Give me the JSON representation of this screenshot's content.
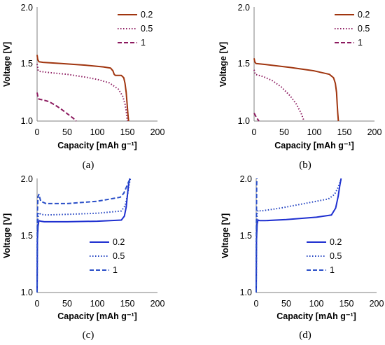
{
  "chart_data": [
    {
      "type": "line",
      "caption": "(a)",
      "xlabel": "Capacity [mAh g⁻¹]",
      "ylabel": "Voltage [V]",
      "xlim": [
        0,
        200
      ],
      "ylim": [
        1.0,
        2.0
      ],
      "xticks": [
        "0",
        "50",
        "100",
        "150",
        "200"
      ],
      "yticks": [
        "1.0",
        "1.5",
        "2.0"
      ],
      "legend_position": "top-right",
      "series": [
        {
          "name": "0.2",
          "color": "#a0350f",
          "dash": "solid",
          "x": [
            0,
            1,
            3,
            10,
            40,
            80,
            110,
            122,
            126,
            128,
            130,
            140,
            144,
            146,
            148,
            150,
            151,
            152
          ],
          "y": [
            1.58,
            1.54,
            1.52,
            1.515,
            1.505,
            1.49,
            1.475,
            1.465,
            1.44,
            1.41,
            1.4,
            1.4,
            1.38,
            1.33,
            1.25,
            1.12,
            1.05,
            1.0
          ]
        },
        {
          "name": "0.5",
          "color": "#8c1a5f",
          "dash": "dot",
          "x": [
            0,
            2,
            5,
            20,
            50,
            80,
            100,
            120,
            135,
            142,
            146,
            148,
            149,
            150
          ],
          "y": [
            1.5,
            1.44,
            1.435,
            1.425,
            1.41,
            1.385,
            1.365,
            1.335,
            1.28,
            1.22,
            1.15,
            1.09,
            1.04,
            1.0
          ]
        },
        {
          "name": "1",
          "color": "#8c1a5f",
          "dash": "dash",
          "x": [
            0,
            2,
            5,
            10,
            20,
            30,
            40,
            50,
            60,
            65
          ],
          "y": [
            1.25,
            1.195,
            1.19,
            1.185,
            1.17,
            1.14,
            1.105,
            1.065,
            1.025,
            1.0
          ]
        }
      ]
    },
    {
      "type": "line",
      "caption": "(b)",
      "xlabel": "Capacity [mAh g⁻¹]",
      "ylabel": "Voltage [V]",
      "xlim": [
        0,
        200
      ],
      "ylim": [
        1.0,
        2.0
      ],
      "xticks": [
        "0",
        "50",
        "100",
        "150",
        "200"
      ],
      "yticks": [
        "1.0",
        "1.5",
        "2.0"
      ],
      "legend_position": "top-right",
      "series": [
        {
          "name": "0.2",
          "color": "#a0350f",
          "dash": "solid",
          "x": [
            0,
            1,
            3,
            20,
            60,
            100,
            125,
            132,
            135,
            137,
            138,
            139,
            140
          ],
          "y": [
            1.55,
            1.52,
            1.505,
            1.495,
            1.47,
            1.44,
            1.41,
            1.38,
            1.33,
            1.25,
            1.15,
            1.07,
            1.0
          ]
        },
        {
          "name": "0.5",
          "color": "#8c1a5f",
          "dash": "dot",
          "x": [
            0,
            2,
            5,
            15,
            30,
            45,
            60,
            70,
            78,
            83
          ],
          "y": [
            1.45,
            1.41,
            1.405,
            1.39,
            1.355,
            1.3,
            1.22,
            1.15,
            1.07,
            1.0
          ]
        },
        {
          "name": "1",
          "color": "#8c1a5f",
          "dash": "dash",
          "x": [
            0,
            2,
            4,
            6,
            8
          ],
          "y": [
            1.07,
            1.05,
            1.03,
            1.015,
            1.0
          ]
        }
      ]
    },
    {
      "type": "line",
      "caption": "(c)",
      "xlabel": "Capacity [mAh g⁻¹]",
      "ylabel": "Voltage [V]",
      "xlim": [
        0,
        200
      ],
      "ylim": [
        1.0,
        2.0
      ],
      "xticks": [
        "0",
        "50",
        "100",
        "150",
        "200"
      ],
      "yticks": [
        "1.0",
        "1.5",
        "2.0"
      ],
      "legend_position": "right",
      "series": [
        {
          "name": "0.2",
          "color": "#1e2fd0",
          "dash": "solid",
          "x": [
            0,
            0.5,
            1.5,
            3,
            6,
            12,
            50,
            100,
            140,
            145,
            148,
            150,
            152,
            154
          ],
          "y": [
            1.0,
            1.45,
            1.58,
            1.63,
            1.625,
            1.62,
            1.62,
            1.625,
            1.635,
            1.67,
            1.75,
            1.85,
            1.95,
            2.0
          ]
        },
        {
          "name": "0.5",
          "color": "#1e3fc0",
          "dash": "dot",
          "x": [
            0,
            0.5,
            1.5,
            3,
            6,
            15,
            50,
            100,
            140,
            146,
            150,
            153,
            155
          ],
          "y": [
            1.0,
            1.55,
            1.66,
            1.7,
            1.685,
            1.68,
            1.685,
            1.695,
            1.715,
            1.76,
            1.85,
            1.95,
            2.0
          ]
        },
        {
          "name": "1",
          "color": "#2a4fc8",
          "dash": "dash",
          "x": [
            0,
            0.5,
            1.5,
            3,
            6,
            15,
            50,
            100,
            138,
            144,
            148,
            152,
            155
          ],
          "y": [
            1.0,
            1.7,
            1.84,
            1.86,
            1.8,
            1.78,
            1.78,
            1.8,
            1.835,
            1.87,
            1.92,
            1.97,
            2.0
          ]
        }
      ]
    },
    {
      "type": "line",
      "caption": "(d)",
      "xlabel": "Capacity [mAh g⁻¹]",
      "ylabel": "Voltage [V]",
      "xlim": [
        0,
        200
      ],
      "ylim": [
        1.0,
        2.0
      ],
      "xticks": [
        "0",
        "50",
        "100",
        "150",
        "200"
      ],
      "yticks": [
        "1.0",
        "1.5",
        "2.0"
      ],
      "legend_position": "right",
      "series": [
        {
          "name": "0.2",
          "color": "#1e2fd0",
          "dash": "solid",
          "x": [
            0,
            0.5,
            1.5,
            3,
            6,
            15,
            50,
            100,
            125,
            132,
            136,
            139,
            141
          ],
          "y": [
            1.0,
            1.45,
            1.6,
            1.635,
            1.63,
            1.63,
            1.64,
            1.66,
            1.68,
            1.74,
            1.84,
            1.94,
            2.0
          ]
        },
        {
          "name": "0.5",
          "color": "#1e3fc0",
          "dash": "dot",
          "x": [
            0,
            0.5,
            1.5,
            3,
            8,
            40,
            80,
            120,
            130,
            136,
            140,
            142
          ],
          "y": [
            1.0,
            1.55,
            1.7,
            1.72,
            1.715,
            1.74,
            1.78,
            1.82,
            1.86,
            1.92,
            1.98,
            2.0
          ]
        },
        {
          "name": "1",
          "color": "#2a4fc8",
          "dash": "dash",
          "x": [
            0,
            0.3,
            0.8,
            1.2
          ],
          "y": [
            1.0,
            1.6,
            1.95,
            2.0
          ]
        }
      ]
    }
  ]
}
